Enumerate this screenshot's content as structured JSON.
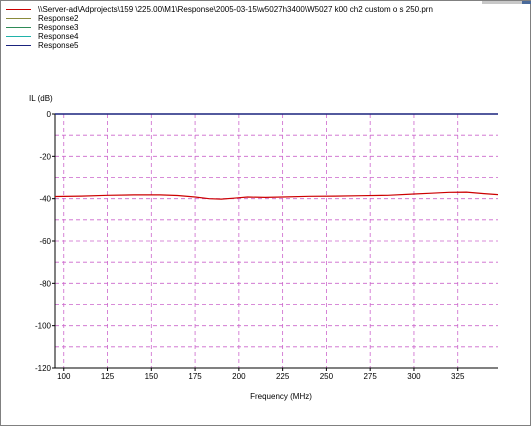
{
  "chart_data": {
    "type": "line",
    "xlabel": "Frequency (MHz)",
    "ylabel": "IL (dB)",
    "xlim": [
      95,
      348
    ],
    "ylim": [
      -120,
      0
    ],
    "x_ticks": [
      100,
      125,
      150,
      175,
      200,
      225,
      250,
      275,
      300,
      325
    ],
    "y_ticks": [
      0,
      -20,
      -40,
      -60,
      -80,
      -100,
      -120
    ],
    "grid": true,
    "legend_position": "top-left",
    "series": [
      {
        "name": "\\\\Server-ad\\Adprojects\\159 \\225.00\\M1\\Response\\2005-03-15\\w5027h3400\\W5027 k00 ch2 custom o s 250.prn",
        "color": "#cc0000",
        "x": [
          95,
          110,
          125,
          140,
          155,
          165,
          175,
          183,
          190,
          197,
          205,
          215,
          225,
          240,
          255,
          270,
          285,
          300,
          310,
          320,
          330,
          340,
          348
        ],
        "y": [
          -39,
          -38.8,
          -38.4,
          -38.2,
          -38.2,
          -38.5,
          -39.2,
          -40.0,
          -40.2,
          -39.8,
          -39.2,
          -39.4,
          -39.2,
          -38.9,
          -38.8,
          -38.6,
          -38.4,
          -37.8,
          -37.4,
          -37.0,
          -36.9,
          -37.6,
          -38.1
        ]
      },
      {
        "name": "Response2",
        "color": "#8a8a3a",
        "x": [],
        "y": []
      },
      {
        "name": "Response3",
        "color": "#2e8b57",
        "x": [],
        "y": []
      },
      {
        "name": "Response4",
        "color": "#20b2aa",
        "x": [],
        "y": []
      },
      {
        "name": "Response5",
        "color": "#1a237e",
        "x": [],
        "y": []
      }
    ]
  },
  "colors": {
    "grid": "#cc66cc",
    "axis": "#000000",
    "top_axis": "#1a237e"
  }
}
